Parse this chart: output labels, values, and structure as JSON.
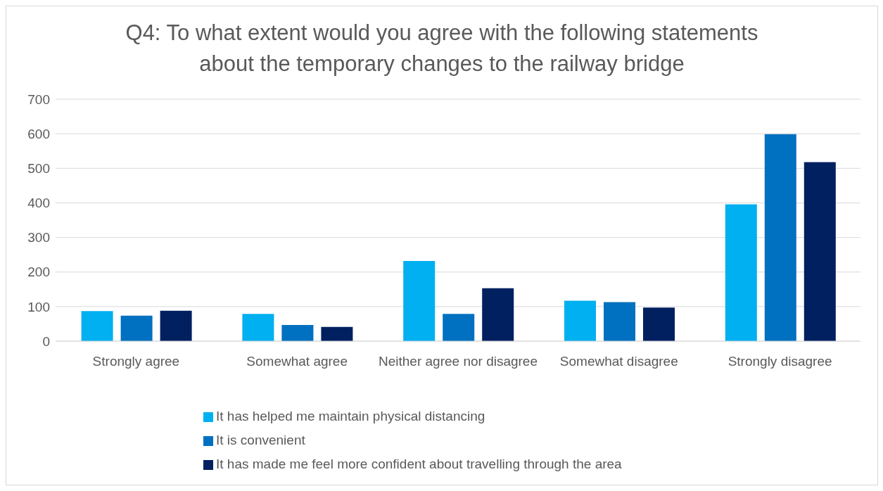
{
  "chart_data": {
    "type": "bar",
    "title": "Q4: To what extent would you agree with the following statements about the temporary changes to the railway bridge",
    "categories": [
      "Strongly agree",
      "Somewhat agree",
      "Neither agree nor disagree",
      "Somewhat disagree",
      "Strongly disagree"
    ],
    "series": [
      {
        "name": "It has helped me maintain physical distancing",
        "color": "#00b0f0",
        "values": [
          87,
          79,
          232,
          117,
          396
        ]
      },
      {
        "name": "It is convenient",
        "color": "#0070c0",
        "values": [
          74,
          47,
          79,
          113,
          599
        ]
      },
      {
        "name": "It has made me feel more confident about travelling through the area",
        "color": "#002060",
        "values": [
          88,
          41,
          153,
          97,
          518
        ]
      }
    ],
    "ylim": [
      0,
      700
    ],
    "yticks": [
      0,
      100,
      200,
      300,
      400,
      500,
      600,
      700
    ],
    "grid": "y",
    "legend": "bottom"
  }
}
